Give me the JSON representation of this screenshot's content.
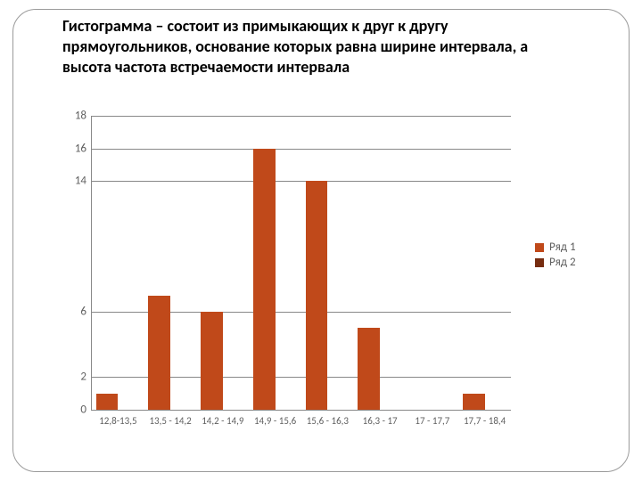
{
  "title": {
    "text": "Гистограмма – состоит из примыкающих к друг к другу прямоугольников, основание которых равна ширине интервала, а высота частота встречаемости интервала",
    "fontsize": 18,
    "color": "#000000"
  },
  "chart": {
    "type": "histogram",
    "background_color": "#ffffff",
    "axis_color": "#888888",
    "grid_color": "#888888",
    "tick_font_color": "#606060",
    "tick_fontsize": 13,
    "ylim": [
      0,
      18
    ],
    "yticks": [
      0,
      2,
      6,
      14,
      16,
      18
    ],
    "categories": [
      "12,8-13,5",
      "13,5 - 14,2",
      "14,2 - 14,9",
      "14,9 - 15,6",
      "15,6 - 16,3",
      "16,3 - 17",
      "17 - 17,7",
      "17,7 - 18,4"
    ],
    "series_a": {
      "color": "#c0491a",
      "values": [
        1,
        7,
        6,
        16,
        14,
        5,
        0,
        1
      ]
    },
    "series_b": {
      "color": "#762c10",
      "values": [
        0,
        0,
        0,
        0,
        0,
        0,
        0,
        0
      ]
    },
    "bar_group_width": 0.84,
    "legend": [
      {
        "label": "Ряд 1",
        "color": "#c0491a"
      },
      {
        "label": "Ряд 2",
        "color": "#762c10"
      }
    ]
  }
}
